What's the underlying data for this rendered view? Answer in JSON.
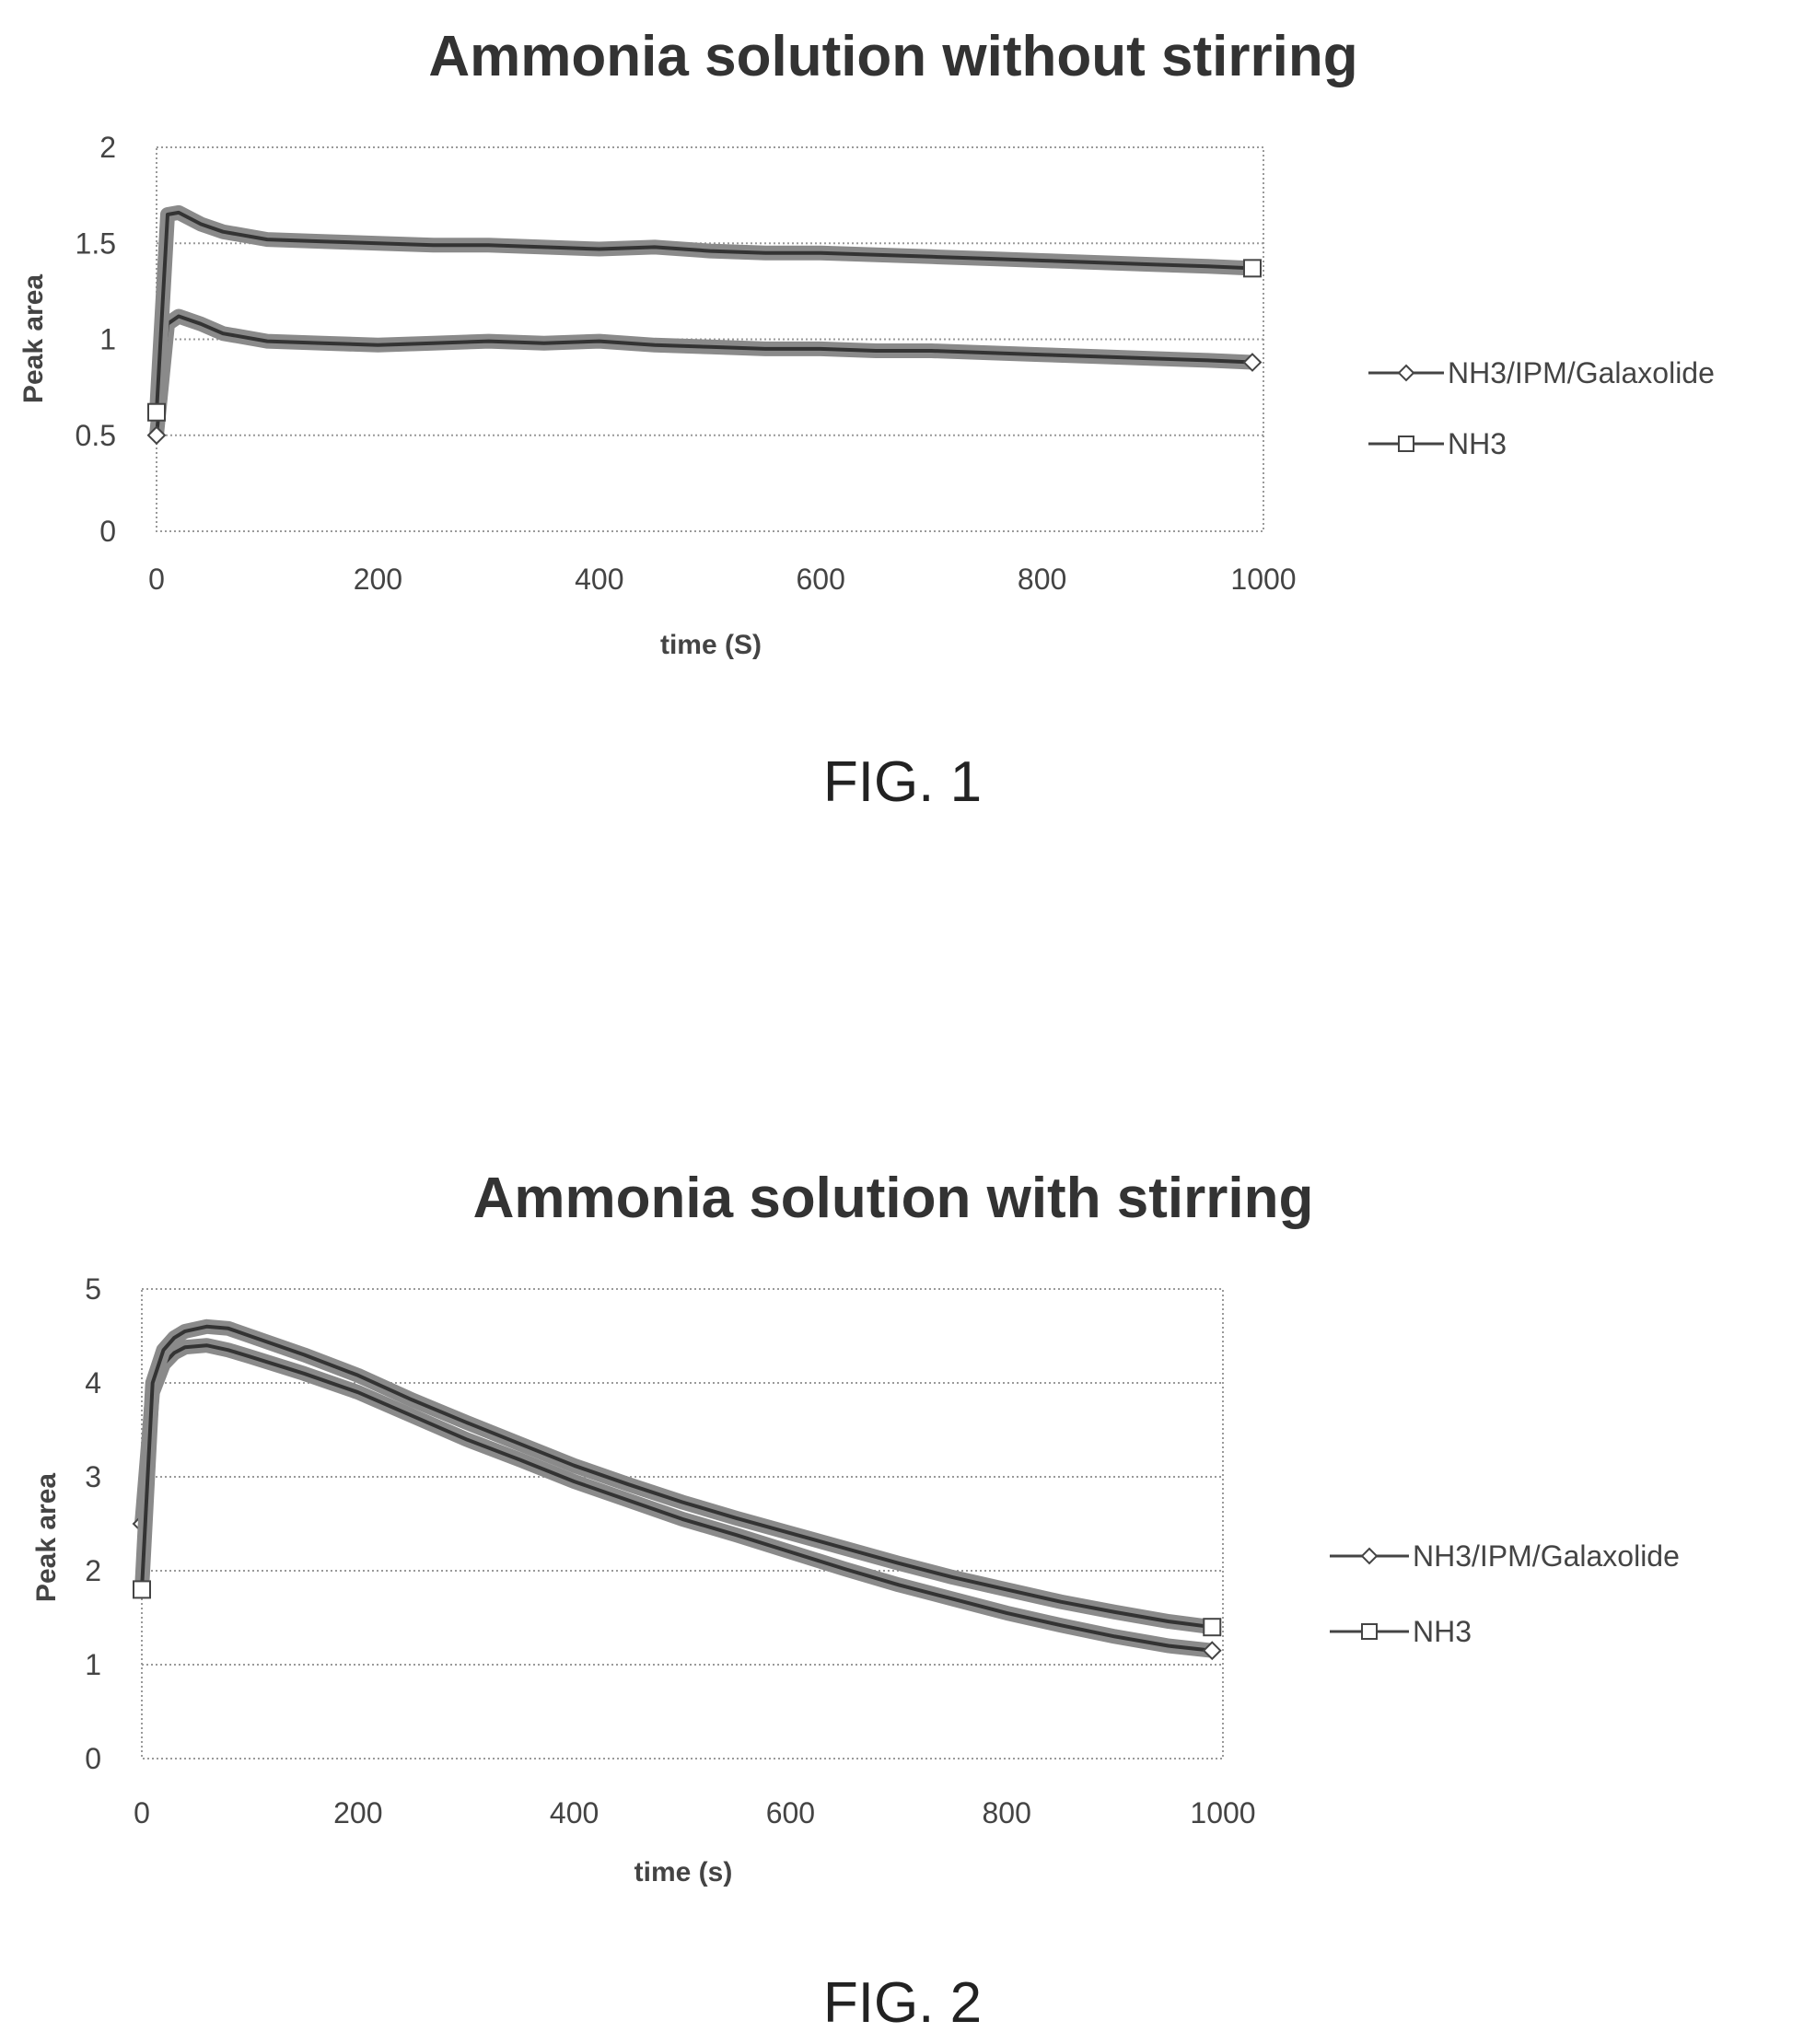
{
  "chart_data": [
    {
      "type": "line",
      "figure_label": "FIG. 1",
      "title": "Ammonia solution without stirring",
      "xlabel": "time (S)",
      "ylabel": "Peak area",
      "xlim": [
        0,
        1000
      ],
      "ylim": [
        0,
        2
      ],
      "xticks": [
        "0",
        "200",
        "400",
        "600",
        "800",
        "1000"
      ],
      "yticks": [
        "0",
        "0.5",
        "1",
        "1.5",
        "2"
      ],
      "grid": true,
      "legend": "right",
      "x": [
        0,
        10,
        20,
        40,
        60,
        100,
        150,
        200,
        250,
        300,
        350,
        400,
        450,
        500,
        550,
        600,
        650,
        700,
        750,
        800,
        850,
        900,
        950,
        990
      ],
      "series": [
        {
          "name": "NH3/IPM/Galaxolide",
          "marker": "diamond",
          "values": [
            0.5,
            1.08,
            1.12,
            1.08,
            1.03,
            0.99,
            0.98,
            0.97,
            0.98,
            0.99,
            0.98,
            0.99,
            0.97,
            0.96,
            0.95,
            0.95,
            0.94,
            0.94,
            0.93,
            0.92,
            0.91,
            0.9,
            0.89,
            0.88
          ]
        },
        {
          "name": "NH3",
          "marker": "square",
          "values": [
            0.62,
            1.65,
            1.66,
            1.6,
            1.56,
            1.52,
            1.51,
            1.5,
            1.49,
            1.49,
            1.48,
            1.47,
            1.48,
            1.46,
            1.45,
            1.45,
            1.44,
            1.43,
            1.42,
            1.41,
            1.4,
            1.39,
            1.38,
            1.37
          ]
        }
      ]
    },
    {
      "type": "line",
      "figure_label": "FIG. 2",
      "title": "Ammonia solution with stirring",
      "xlabel": "time (s)",
      "ylabel": "Peak area",
      "xlim": [
        0,
        1000
      ],
      "ylim": [
        0,
        5
      ],
      "xticks": [
        "0",
        "200",
        "400",
        "600",
        "800",
        "1000"
      ],
      "yticks": [
        "0",
        "1",
        "2",
        "3",
        "4",
        "5"
      ],
      "grid": true,
      "legend": "right",
      "x": [
        0,
        10,
        20,
        30,
        40,
        60,
        80,
        100,
        150,
        200,
        250,
        300,
        350,
        400,
        450,
        500,
        550,
        600,
        650,
        700,
        750,
        800,
        850,
        900,
        950,
        990
      ],
      "series": [
        {
          "name": "NH3/IPM/Galaxolide",
          "marker": "diamond",
          "values": [
            2.5,
            3.9,
            4.2,
            4.32,
            4.38,
            4.4,
            4.35,
            4.28,
            4.1,
            3.9,
            3.65,
            3.4,
            3.18,
            2.95,
            2.75,
            2.55,
            2.38,
            2.2,
            2.02,
            1.85,
            1.7,
            1.55,
            1.42,
            1.3,
            1.2,
            1.15
          ]
        },
        {
          "name": "NH3",
          "marker": "square",
          "values": [
            1.8,
            4.0,
            4.35,
            4.48,
            4.55,
            4.6,
            4.58,
            4.5,
            4.3,
            4.08,
            3.82,
            3.58,
            3.35,
            3.12,
            2.92,
            2.73,
            2.56,
            2.4,
            2.24,
            2.08,
            1.93,
            1.8,
            1.67,
            1.56,
            1.46,
            1.4
          ]
        }
      ]
    }
  ]
}
